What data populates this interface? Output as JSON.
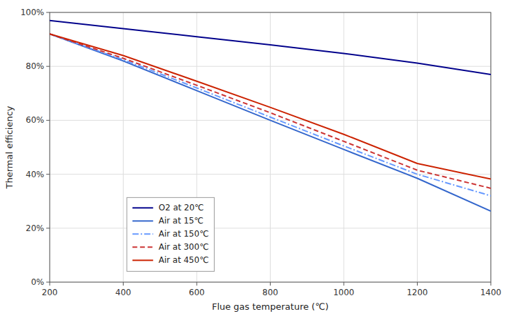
{
  "chart_data": {
    "type": "line",
    "xlabel": "Flue gas temperature (℃)",
    "ylabel": "Thermal efficiency",
    "x": [
      200,
      400,
      600,
      800,
      1000,
      1200,
      1400
    ],
    "xlim": [
      200,
      1400
    ],
    "ylim": [
      0.0,
      1.0
    ],
    "xticks": [
      200,
      400,
      600,
      800,
      1000,
      1200,
      1400
    ],
    "yticks": [
      {
        "value": 0.0,
        "label": "0%"
      },
      {
        "value": 0.2,
        "label": "20%"
      },
      {
        "value": 0.4,
        "label": "40%"
      },
      {
        "value": 0.6,
        "label": "60%"
      },
      {
        "value": 0.8,
        "label": "80%"
      },
      {
        "value": 1.0,
        "label": "100%"
      }
    ],
    "grid": true,
    "legend": "lower left",
    "series": [
      {
        "name": "O2 at 20℃",
        "color": "#00008B",
        "line_style": "solid",
        "values": [
          0.97,
          0.94,
          0.91,
          0.88,
          0.848,
          0.812,
          0.77
        ]
      },
      {
        "name": "Air at 15℃",
        "color": "#3366CC",
        "line_style": "solid",
        "values": [
          0.92,
          0.82,
          0.71,
          0.6,
          0.492,
          0.385,
          0.263
        ]
      },
      {
        "name": "Air at 150℃",
        "color": "#6699FF",
        "line_style": "dashdot",
        "values": [
          0.92,
          0.825,
          0.72,
          0.612,
          0.505,
          0.4,
          0.32
        ]
      },
      {
        "name": "Air at 300℃",
        "color": "#CC3333",
        "line_style": "dashed",
        "values": [
          0.92,
          0.83,
          0.73,
          0.628,
          0.522,
          0.415,
          0.348
        ]
      },
      {
        "name": "Air at 450℃",
        "color": "#CC2200",
        "line_style": "solid",
        "values": [
          0.92,
          0.84,
          0.745,
          0.648,
          0.548,
          0.44,
          0.382
        ]
      }
    ]
  }
}
